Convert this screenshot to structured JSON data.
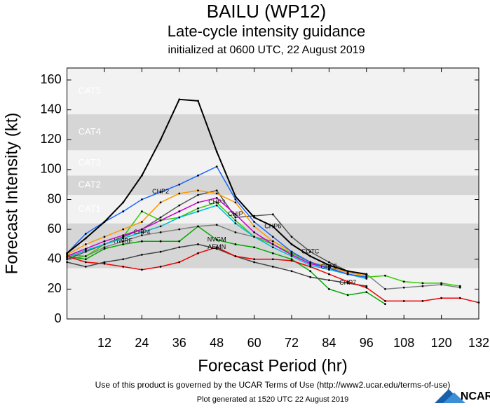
{
  "chart_data": {
    "type": "line",
    "title": "BAILU (WP12)",
    "subtitle": "Late-cycle intensity guidance",
    "initialized": "initialized at 0600 UTC, 22 August 2019",
    "xlabel": "Forecast Period (hr)",
    "ylabel": "Forecast Intensity (kt)",
    "footer": "Use of this product is governed by the UCAR Terms of Use (http://www2.ucar.edu/terms-of-use)",
    "generated": "Plot generated at 1520 UTC  22 August 2019",
    "logo": "NCAR",
    "xlim": [
      0,
      132
    ],
    "ylim": [
      0,
      168
    ],
    "xticks": [
      12,
      24,
      36,
      48,
      60,
      72,
      84,
      96,
      108,
      120,
      132
    ],
    "yticks": [
      0,
      20,
      40,
      60,
      80,
      100,
      120,
      140,
      160
    ],
    "bands": [
      {
        "label": "TS",
        "from": 34,
        "to": 64
      },
      {
        "label": "CAT1",
        "from": 64,
        "to": 83
      },
      {
        "label": "CAT2",
        "from": 83,
        "to": 96
      },
      {
        "label": "CAT3",
        "from": 96,
        "to": 113
      },
      {
        "label": "CAT4",
        "from": 113,
        "to": 137
      },
      {
        "label": "CAT5",
        "from": 137,
        "to": 168
      }
    ],
    "x": [
      0,
      6,
      12,
      18,
      24,
      30,
      36,
      42,
      48,
      54,
      60,
      66,
      72,
      78,
      84,
      90,
      96,
      102,
      108,
      114,
      120,
      126,
      132
    ],
    "series": [
      {
        "name": "HWRF",
        "color": "#808080",
        "values": [
          40,
          42,
          48,
          52,
          56,
          58,
          60,
          62,
          63,
          58,
          55,
          52,
          45,
          38,
          34,
          32,
          30,
          20,
          21,
          22,
          23,
          21,
          null
        ]
      },
      {
        "name": "CHP3",
        "color": "#33cc00",
        "values": [
          43,
          42,
          50,
          55,
          72,
          66,
          68,
          74,
          78,
          66,
          55,
          50,
          44,
          38,
          34,
          30,
          28,
          29,
          25,
          24,
          24,
          22,
          null
        ]
      },
      {
        "name": "COTC",
        "color": "#555555",
        "values": [
          40,
          45,
          50,
          55,
          60,
          68,
          76,
          83,
          86,
          68,
          69,
          70,
          55,
          45,
          38,
          32,
          30,
          null,
          null,
          null,
          null,
          null,
          null
        ]
      },
      {
        "name": "CHP4",
        "color": "#00bbdd",
        "values": [
          41,
          46,
          50,
          54,
          58,
          62,
          68,
          72,
          76,
          64,
          55,
          48,
          42,
          36,
          33,
          30,
          27,
          null,
          null,
          null,
          null,
          null,
          null
        ]
      },
      {
        "name": "CHIP",
        "color": "#cc00cc",
        "values": [
          42,
          47,
          52,
          56,
          60,
          66,
          72,
          78,
          81,
          70,
          58,
          50,
          43,
          37,
          34,
          30,
          28,
          null,
          null,
          null,
          null,
          null,
          null
        ]
      },
      {
        "name": "CHP5",
        "color": "#ff9900",
        "values": [
          43,
          50,
          55,
          60,
          65,
          78,
          84,
          86,
          84,
          78,
          62,
          52,
          45,
          38,
          35,
          31,
          29,
          null,
          null,
          null,
          null,
          null,
          null
        ]
      },
      {
        "name": "CHP2",
        "color": "#1a66ff",
        "values": [
          44,
          57,
          65,
          72,
          80,
          85,
          90,
          96,
          102,
          80,
          65,
          55,
          45,
          38,
          34,
          30,
          28,
          null,
          null,
          null,
          null,
          null,
          null
        ]
      },
      {
        "name": "NVGM",
        "color": "#00aa00",
        "values": [
          42,
          40,
          47,
          50,
          52,
          52,
          52,
          62,
          53,
          50,
          48,
          44,
          40,
          32,
          20,
          16,
          18,
          10,
          null,
          null,
          null,
          null,
          null
        ]
      },
      {
        "name": "CHP7",
        "color": "#444444",
        "values": [
          38,
          35,
          38,
          40,
          43,
          45,
          48,
          50,
          47,
          42,
          38,
          35,
          32,
          28,
          26,
          24,
          22,
          null,
          null,
          null,
          null,
          null,
          null
        ]
      },
      {
        "name": "AEMN",
        "color": "#ee0000",
        "values": [
          42,
          38,
          37,
          35,
          33,
          35,
          38,
          44,
          48,
          42,
          40,
          40,
          39,
          35,
          30,
          25,
          21,
          12,
          12,
          12,
          14,
          14,
          11
        ]
      },
      {
        "name": "CHP6",
        "color": "#000000",
        "values": [
          44,
          54,
          65,
          78,
          96,
          120,
          147,
          146,
          112,
          82,
          68,
          62,
          50,
          42,
          36,
          32,
          30,
          null,
          null,
          null,
          null,
          null,
          null
        ]
      }
    ]
  }
}
